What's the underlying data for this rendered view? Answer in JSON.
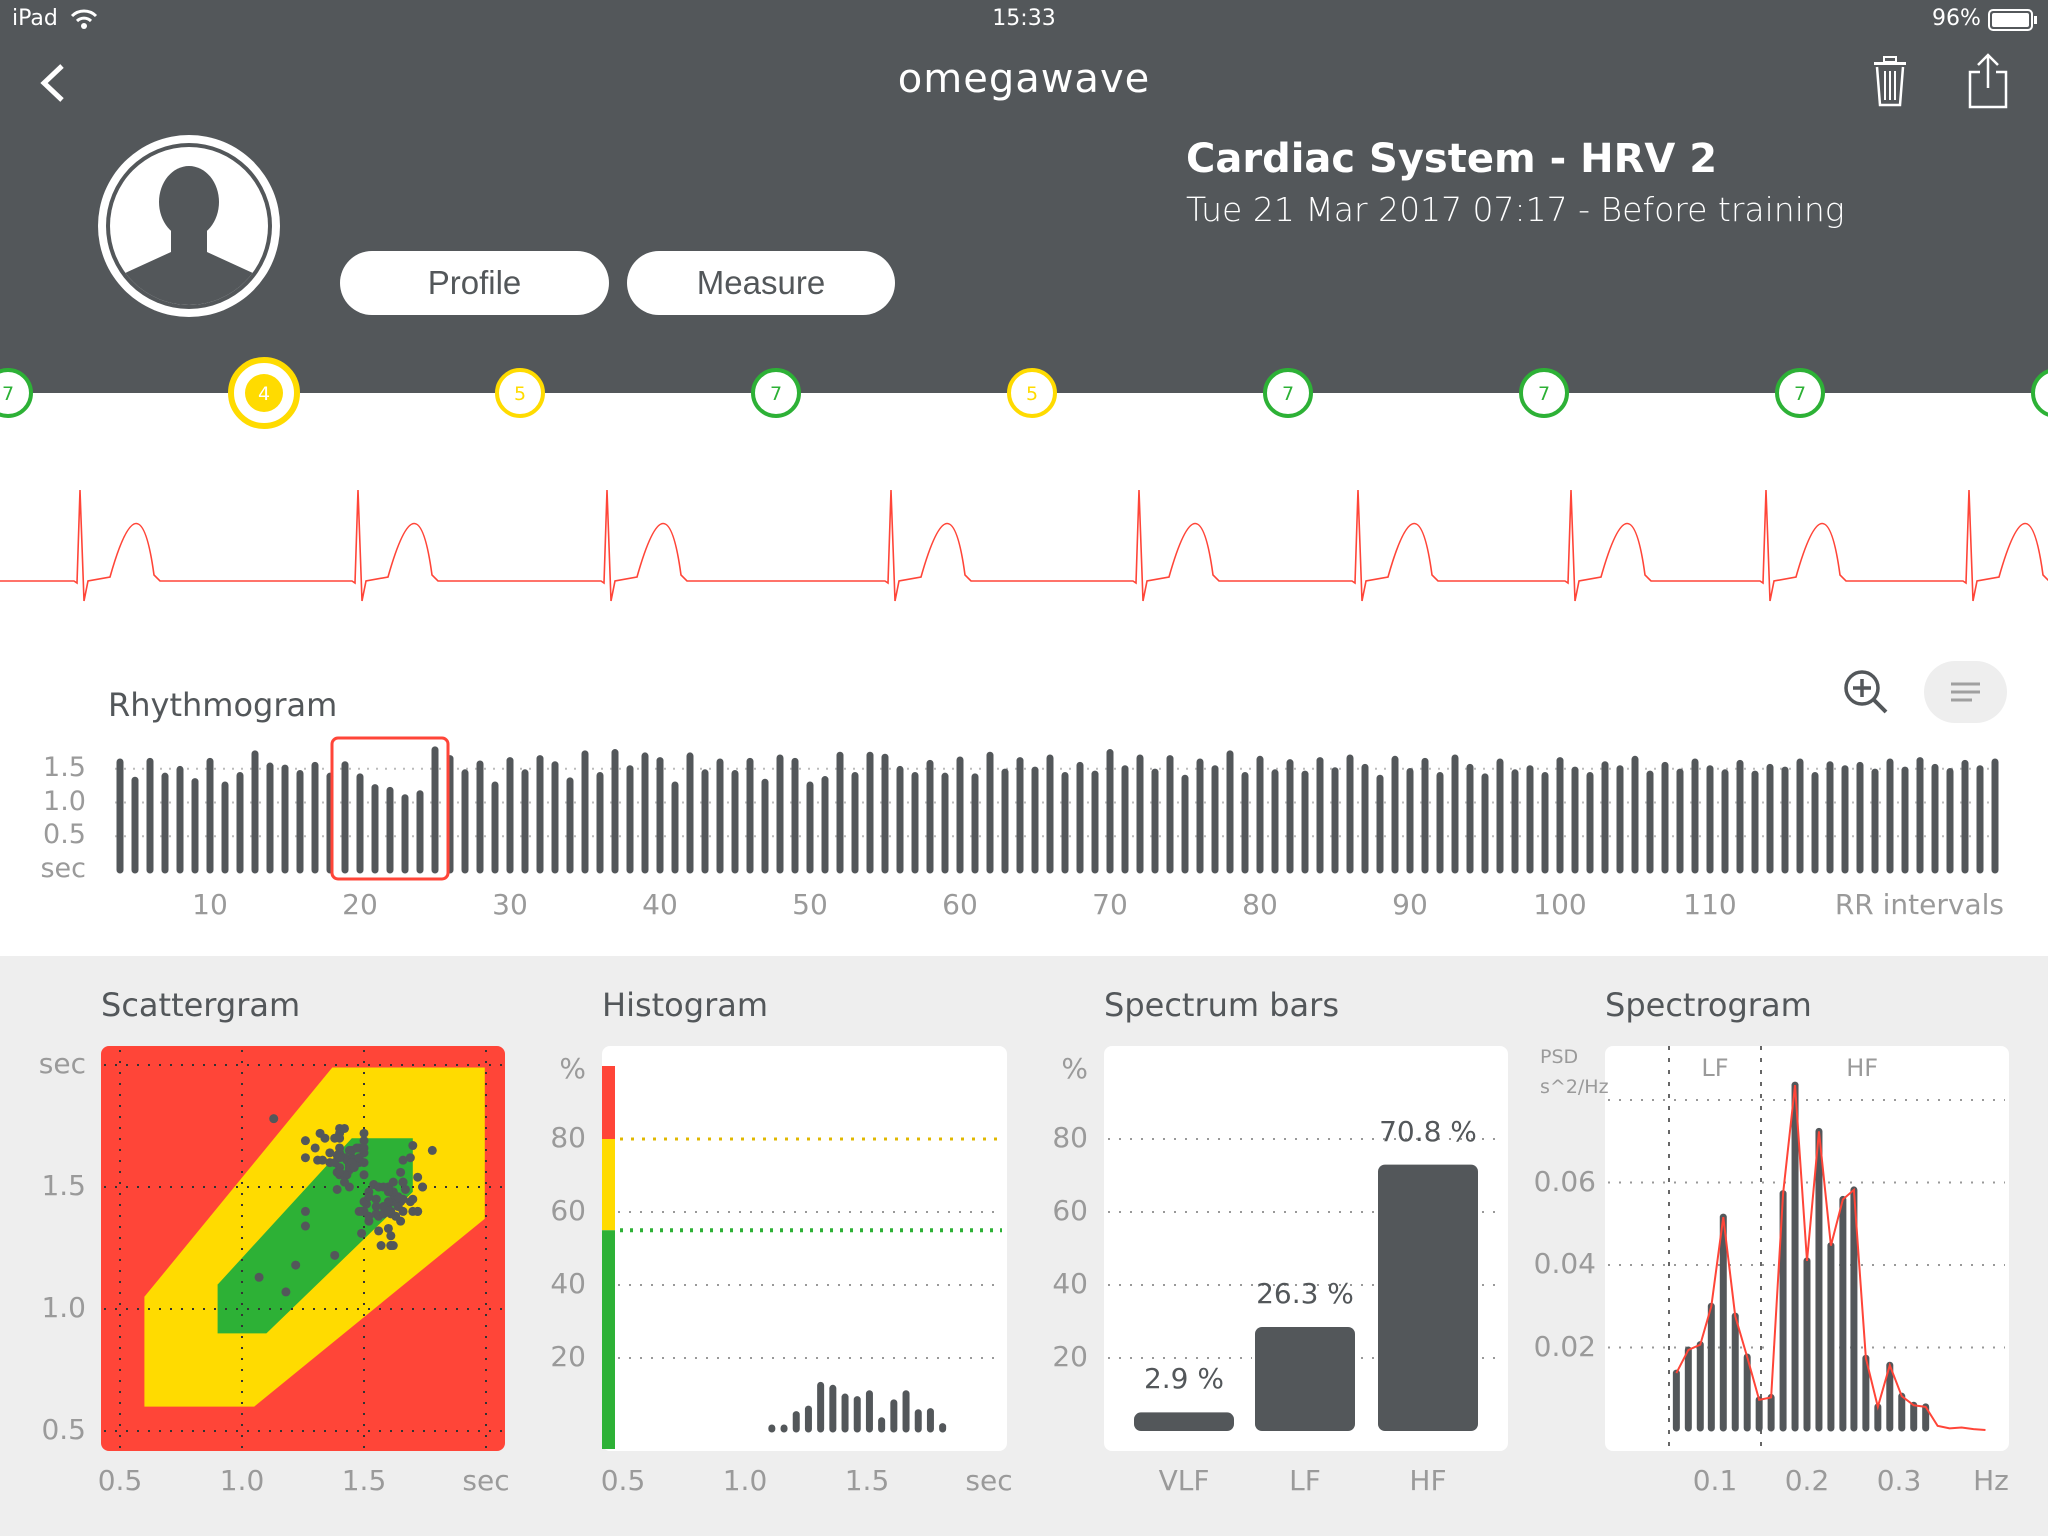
{
  "status_bar": {
    "device": "iPad",
    "time": "15:33",
    "battery": "96%"
  },
  "header": {
    "logo": "omegawave",
    "title": "Cardiac System - HRV 2",
    "subtitle": "Tue 21 Mar 2017 07:17 - Before training",
    "profile_label": "Profile",
    "measure_label": "Measure"
  },
  "timeline": {
    "items": [
      {
        "value": "7",
        "color": "#2db136"
      },
      {
        "value": "4",
        "color": "#ffdb00",
        "selected": true
      },
      {
        "value": "5",
        "color": "#ffdb00"
      },
      {
        "value": "7",
        "color": "#2db136"
      },
      {
        "value": "5",
        "color": "#ffdb00"
      },
      {
        "value": "7",
        "color": "#2db136"
      },
      {
        "value": "7",
        "color": "#2db136"
      },
      {
        "value": "7",
        "color": "#2db136"
      },
      {
        "value": "",
        "color": "#2db136"
      }
    ]
  },
  "colors": {
    "dark": "#53575a",
    "red": "#ff4538",
    "yellow": "#ffdb00",
    "green": "#2db136"
  },
  "rhythmogram": {
    "title": "Rhythmogram",
    "y_ticks": [
      "1.5",
      "1.0",
      "0.5"
    ],
    "y_unit": "sec",
    "x_ticks": [
      "10",
      "20",
      "30",
      "40",
      "50",
      "60",
      "70",
      "80",
      "90",
      "100",
      "110"
    ],
    "x_label": "RR intervals",
    "first_index": 4,
    "selection": [
      19,
      25
    ],
    "values": [
      1.6,
      1.33,
      1.61,
      1.39,
      1.49,
      1.31,
      1.61,
      1.26,
      1.4,
      1.72,
      1.54,
      1.51,
      1.43,
      1.55,
      1.39,
      1.56,
      1.38,
      1.22,
      1.18,
      1.07,
      1.13,
      1.78,
      1.65,
      1.44,
      1.57,
      1.26,
      1.62,
      1.44,
      1.65,
      1.56,
      1.32,
      1.72,
      1.4,
      1.74,
      1.5,
      1.69,
      1.62,
      1.26,
      1.69,
      1.44,
      1.6,
      1.43,
      1.61,
      1.3,
      1.66,
      1.61,
      1.26,
      1.34,
      1.7,
      1.4,
      1.7,
      1.67,
      1.49,
      1.4,
      1.58,
      1.39,
      1.63,
      1.38,
      1.7,
      1.45,
      1.62,
      1.48,
      1.66,
      1.4,
      1.55,
      1.42,
      1.74,
      1.5,
      1.66,
      1.45,
      1.65,
      1.36,
      1.6,
      1.5,
      1.72,
      1.4,
      1.64,
      1.44,
      1.59,
      1.42,
      1.62,
      1.47,
      1.66,
      1.52,
      1.36,
      1.64,
      1.46,
      1.61,
      1.4,
      1.66,
      1.52,
      1.38,
      1.6,
      1.44,
      1.5,
      1.4,
      1.62,
      1.48,
      1.4,
      1.56,
      1.5,
      1.64,
      1.42,
      1.55,
      1.45,
      1.6,
      1.5,
      1.44,
      1.58,
      1.42,
      1.52,
      1.48,
      1.6,
      1.4,
      1.56,
      1.5,
      1.55,
      1.45,
      1.6,
      1.48,
      1.62,
      1.52,
      1.46,
      1.58,
      1.5,
      1.6
    ]
  },
  "scattergram": {
    "title": "Scattergram",
    "x_ticks": [
      "0.5",
      "1.0",
      "1.5"
    ],
    "x_unit": "sec",
    "y_ticks": [
      "1.5",
      "1.0",
      "0.5"
    ],
    "y_unit": "sec",
    "yellow_zone": [
      [
        0.6,
        1.05
      ],
      [
        1.37,
        1.99
      ],
      [
        1.995,
        1.99
      ],
      [
        1.995,
        1.37
      ],
      [
        1.05,
        0.6
      ],
      [
        0.6,
        0.6
      ]
    ],
    "green_zone": [
      [
        0.9,
        1.1
      ],
      [
        1.45,
        1.7
      ],
      [
        1.7,
        1.7
      ],
      [
        1.7,
        1.48
      ],
      [
        1.1,
        0.9
      ],
      [
        0.9,
        0.9
      ]
    ]
  },
  "histogram": {
    "title": "Histogram",
    "y_unit": "%",
    "y_ticks": [
      "80",
      "60",
      "40",
      "20"
    ],
    "x_ticks": [
      "0.5",
      "1.0",
      "1.5"
    ],
    "x_unit": "sec",
    "yellow_threshold": 80,
    "green_threshold": 55,
    "x": [
      1.11,
      1.16,
      1.21,
      1.26,
      1.31,
      1.36,
      1.41,
      1.46,
      1.51,
      1.56,
      1.61,
      1.66,
      1.71,
      1.76,
      1.81
    ],
    "values": [
      0.3,
      0.3,
      4.5,
      6,
      12.5,
      11.7,
      9.3,
      8.6,
      10.2,
      2.8,
      7.7,
      10.2,
      5,
      5.3,
      1.2
    ]
  },
  "spectrum_bars": {
    "title": "Spectrum bars",
    "y_unit": "%",
    "y_ticks": [
      "80",
      "60",
      "40",
      "20"
    ],
    "bars": [
      {
        "label": "VLF",
        "value": 2.9,
        "text": "2.9 %"
      },
      {
        "label": "LF",
        "value": 26.3,
        "text": "26.3 %"
      },
      {
        "label": "HF",
        "value": 70.8,
        "text": "70.8 %"
      }
    ]
  },
  "spectrogram": {
    "title": "Spectrogram",
    "y_unit_1": "PSD",
    "y_unit_2": "s^2/Hz",
    "y_ticks": [
      "0.06",
      "0.04",
      "0.02"
    ],
    "x_ticks": [
      "0.1",
      "0.2",
      "0.3"
    ],
    "x_unit": "Hz",
    "band_labels": [
      "LF",
      "HF"
    ],
    "band_edges": [
      0.05,
      0.15
    ],
    "freq": [
      0.058,
      0.071,
      0.084,
      0.096,
      0.109,
      0.122,
      0.135,
      0.148,
      0.161,
      0.174,
      0.187,
      0.2,
      0.213,
      0.226,
      0.239,
      0.251,
      0.264,
      0.277,
      0.29,
      0.303,
      0.316,
      0.329,
      0.342,
      0.355,
      0.368,
      0.381,
      0.394
    ],
    "psd": [
      0.0138,
      0.0194,
      0.0207,
      0.03,
      0.0516,
      0.0276,
      0.0177,
      0.0073,
      0.0079,
      0.0573,
      0.0836,
      0.041,
      0.0724,
      0.0447,
      0.0559,
      0.0582,
      0.0174,
      0.0056,
      0.0157,
      0.0082,
      0.006,
      0.0056,
      0.001,
      0.0004,
      0.0006,
      0.0002,
      0
    ]
  }
}
